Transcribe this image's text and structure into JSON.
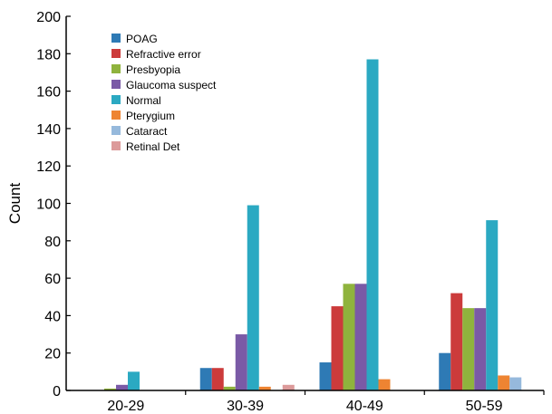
{
  "chart_data": {
    "type": "bar",
    "categories": [
      "20-29",
      "30-39",
      "40-49",
      "50-59"
    ],
    "ylabel": "Count",
    "xlabel": "",
    "ylim": [
      0,
      200
    ],
    "yticks": [
      "0",
      "20",
      "40",
      "60",
      "80",
      "100",
      "120",
      "140",
      "160",
      "180",
      "200"
    ],
    "grid": false,
    "legend_position": "top-left",
    "series": [
      {
        "name": "POAG",
        "color": "#2e7ab5",
        "values": [
          0,
          12,
          15,
          20
        ]
      },
      {
        "name": "Refractive error",
        "color": "#cc3b3b",
        "values": [
          0,
          12,
          45,
          52
        ]
      },
      {
        "name": "Presbyopia",
        "color": "#8fb33d",
        "values": [
          1,
          2,
          57,
          44
        ]
      },
      {
        "name": "Glaucoma suspect",
        "color": "#7a5aa6",
        "values": [
          3,
          30,
          57,
          44
        ]
      },
      {
        "name": "Normal",
        "color": "#2ba9c2",
        "values": [
          10,
          99,
          177,
          91
        ]
      },
      {
        "name": "Pterygium",
        "color": "#ee8432",
        "values": [
          0,
          2,
          6,
          8
        ]
      },
      {
        "name": "Cataract",
        "color": "#96b9dc",
        "values": [
          0,
          0,
          0,
          7
        ]
      },
      {
        "name": "Retinal Det",
        "color": "#dc9a9a",
        "values": [
          0,
          3,
          0,
          0
        ]
      }
    ]
  }
}
